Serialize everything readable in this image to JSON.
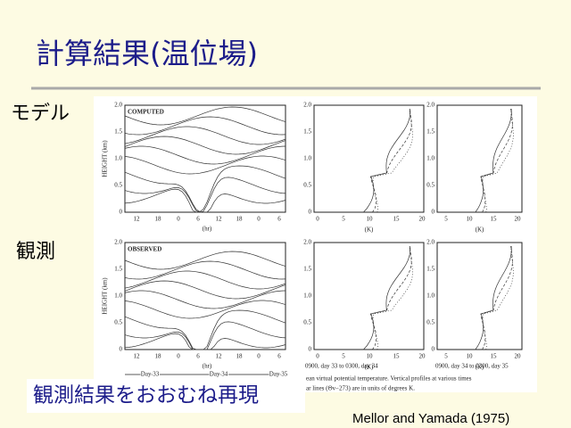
{
  "header": {
    "title": "計算結果(温位場)"
  },
  "row_labels": [
    "モデル",
    "観測"
  ],
  "figure": {
    "panels": [
      {
        "label": "COMPUTED"
      },
      {
        "label": "OBSERVED"
      }
    ],
    "y_axis_label": "HEIGHT (km)",
    "y_ticks": [
      "2.0",
      "1.5",
      "1.0",
      "0.5",
      "0"
    ],
    "time_ticks": [
      "12",
      "18",
      "0",
      "6",
      "12",
      "18",
      "0",
      "6"
    ],
    "time_label": "(hr)",
    "profile_ticks": [
      "0",
      "5",
      "10",
      "15",
      "20"
    ],
    "profile_ticks_right": [
      "5",
      "10",
      "15",
      "20"
    ],
    "profile_unit": "(K)",
    "day_labels": [
      "Day 33",
      "Day 34",
      "Day 35"
    ],
    "profile_captions": [
      "0900, day 33 to 0300, day 34",
      "0900, day 34 to 0300, day 35"
    ],
    "caption_lines": [
      "ean virtual potential temperature. Vertical profiles at various times",
      "ar lines (Θv−273) are in units of degrees K."
    ]
  },
  "summary": "観測結果をおおむね再現",
  "citation": "Mellor and Yamada (1975)"
}
